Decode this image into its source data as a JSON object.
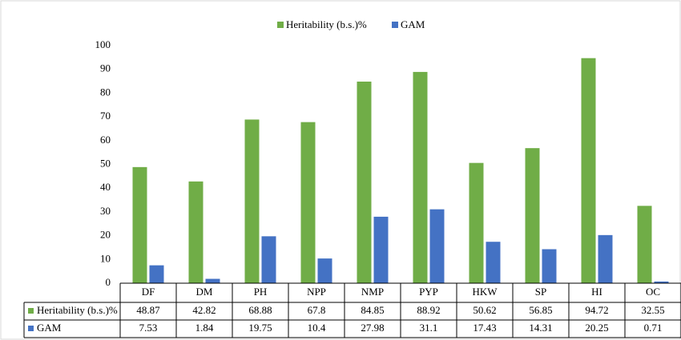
{
  "chart_data": {
    "type": "bar",
    "categories": [
      "DF",
      "DM",
      "PH",
      "NPP",
      "NMP",
      "PYP",
      "HKW",
      "SP",
      "HI",
      "OC"
    ],
    "series": [
      {
        "name": "Heritability (b.s.)%",
        "color": "#70ad47",
        "values": [
          48.87,
          42.82,
          68.88,
          67.8,
          84.85,
          88.92,
          50.62,
          56.85,
          94.72,
          32.55
        ]
      },
      {
        "name": "GAM",
        "color": "#4472c4",
        "values": [
          7.53,
          1.84,
          19.75,
          10.4,
          27.98,
          31.1,
          17.43,
          14.31,
          20.25,
          0.71
        ]
      }
    ],
    "ylim": [
      0,
      100
    ],
    "yticks": [
      0,
      10,
      20,
      30,
      40,
      50,
      60,
      70,
      80,
      90,
      100
    ],
    "grid": false,
    "legend": "top",
    "data_table": true
  }
}
